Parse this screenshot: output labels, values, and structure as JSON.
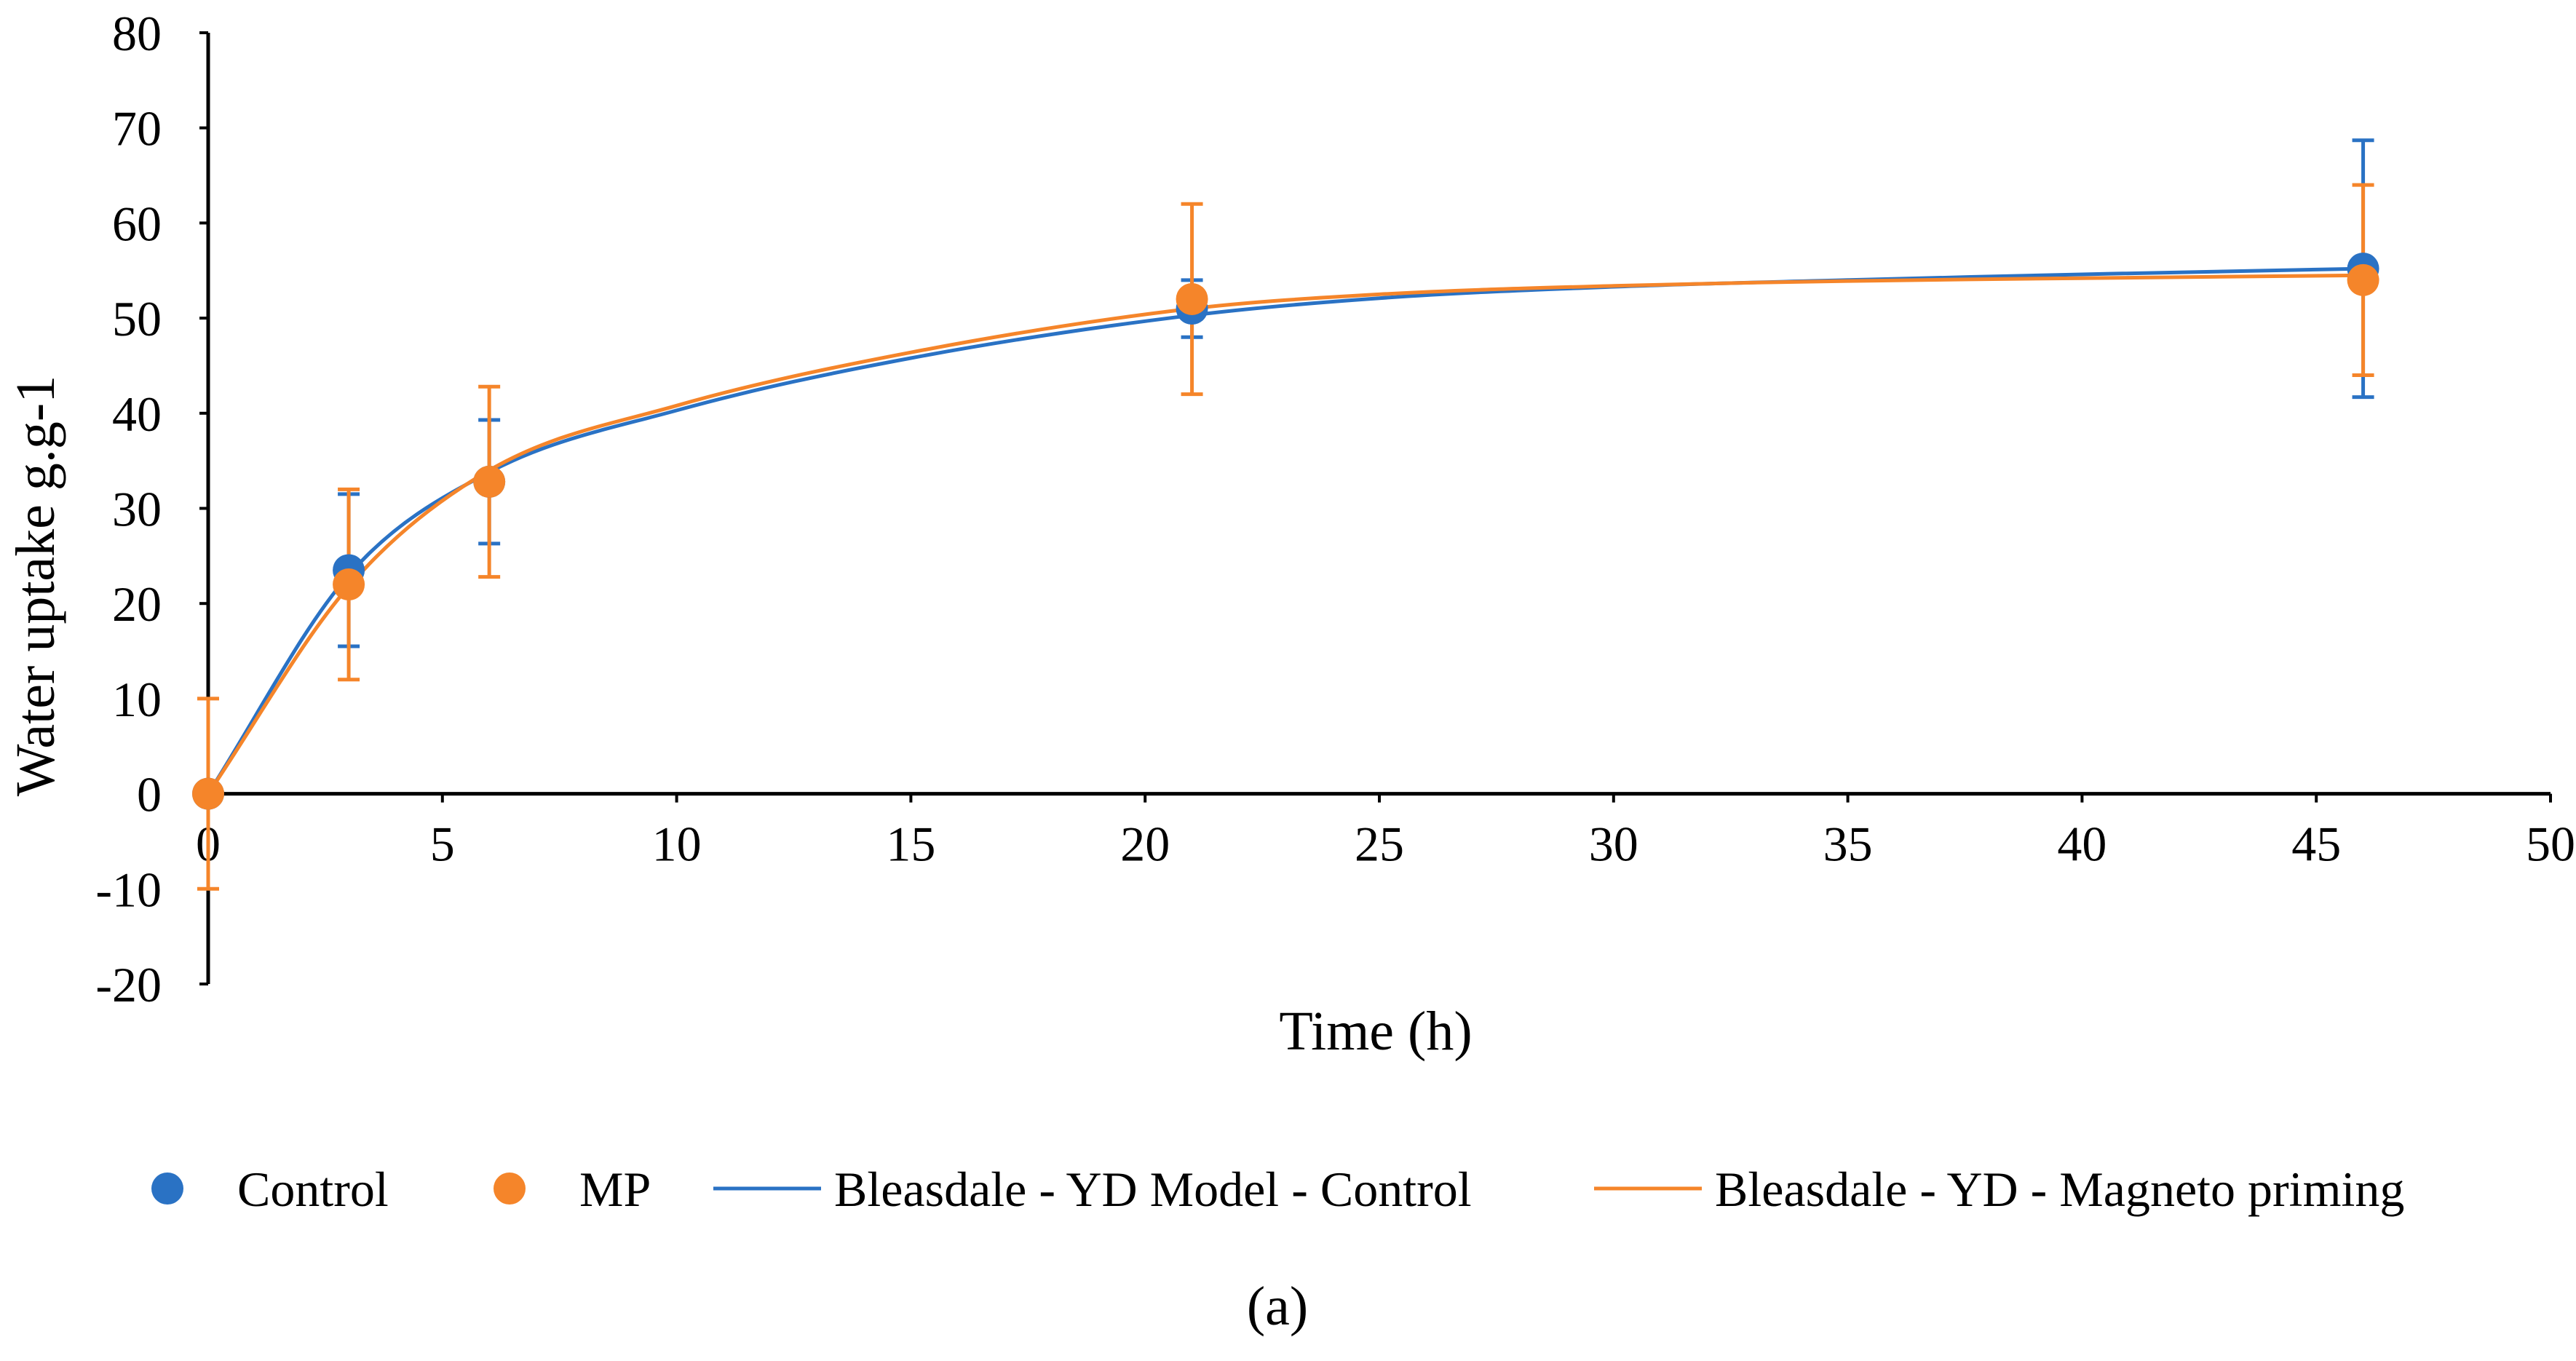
{
  "chart_data": {
    "type": "scatter",
    "xlabel": "Time (h)",
    "ylabel": "Water uptake g.g-1",
    "xlim": [
      0,
      50
    ],
    "ylim": [
      -20,
      80
    ],
    "x_ticks": [
      0,
      5,
      10,
      15,
      20,
      25,
      30,
      35,
      40,
      45,
      50
    ],
    "y_ticks": [
      -20,
      -10,
      0,
      10,
      20,
      30,
      40,
      50,
      60,
      70,
      80
    ],
    "legend_position": "bottom",
    "caption": "(a)",
    "series": [
      {
        "name": "Control",
        "kind": "markers",
        "color": "#2A72C4",
        "x": [
          0,
          3,
          6,
          21,
          46
        ],
        "y": [
          0,
          23.5,
          32.8,
          51,
          55.2
        ],
        "error": [
          0,
          8,
          6.5,
          3,
          13.5
        ]
      },
      {
        "name": "MP",
        "kind": "markers",
        "color": "#F5852A",
        "x": [
          0,
          3,
          6,
          21,
          46
        ],
        "y": [
          0,
          22,
          32.8,
          52,
          54
        ],
        "error": [
          10,
          10,
          10,
          10,
          10
        ]
      },
      {
        "name": "Bleasdale - YD Model - Control",
        "kind": "line",
        "color": "#2A72C4",
        "x": [
          0,
          3,
          6,
          10,
          15,
          21,
          25,
          30,
          35,
          40,
          46
        ],
        "y": [
          0,
          23,
          33.8,
          40.3,
          45.8,
          50.3,
          52.1,
          53.3,
          54,
          54.6,
          55.2
        ]
      },
      {
        "name": "Bleasdale - YD - Magneto priming",
        "kind": "line",
        "color": "#F5852A",
        "x": [
          0,
          3,
          6,
          10,
          15,
          21,
          25,
          30,
          35,
          40,
          46
        ],
        "y": [
          0,
          21.8,
          34,
          40.8,
          46.4,
          51,
          52.5,
          53.4,
          53.9,
          54.2,
          54.5
        ]
      }
    ]
  }
}
